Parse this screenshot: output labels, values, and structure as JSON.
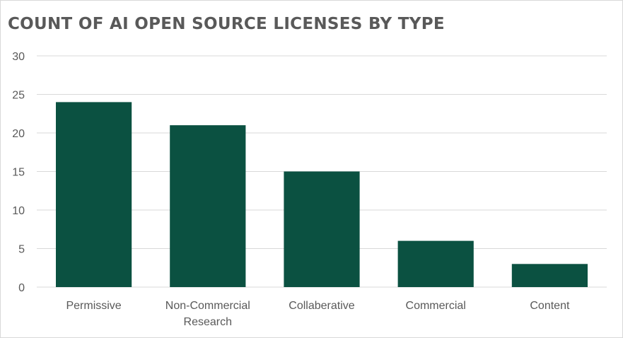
{
  "chart_data": {
    "type": "bar",
    "title": "COUNT OF AI OPEN SOURCE LICENSES BY TYPE",
    "categories": [
      [
        "Permissive"
      ],
      [
        "Non-Commercial",
        "Research"
      ],
      [
        "Collaberative"
      ],
      [
        "Commercial"
      ],
      [
        "Content"
      ]
    ],
    "values": [
      24,
      21,
      15,
      6,
      3
    ],
    "ylim": [
      0,
      30
    ],
    "yticks": [
      0,
      5,
      10,
      15,
      20,
      25,
      30
    ],
    "grid": true,
    "legend": "none",
    "bar_color": "#0b5141",
    "grid_color": "#d9d9d9",
    "text_color": "#595959"
  }
}
